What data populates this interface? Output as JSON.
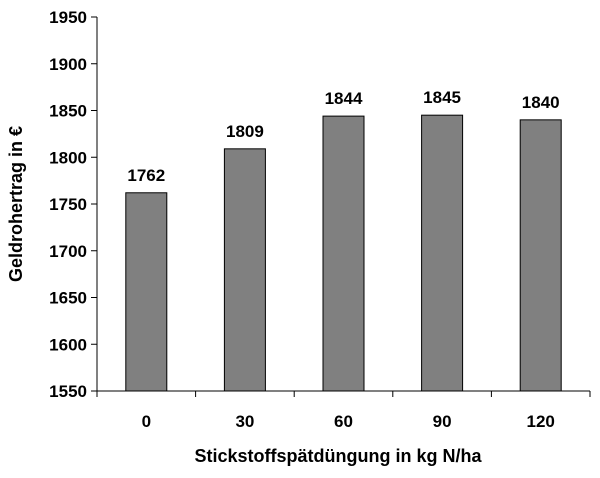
{
  "chart_data": {
    "type": "bar",
    "title": "",
    "xlabel": "Stickstoffspätdüngung in kg N/ha",
    "ylabel": "Geldrohertrag in €",
    "categories": [
      "0",
      "30",
      "60",
      "90",
      "120"
    ],
    "values": [
      1762,
      1809,
      1844,
      1845,
      1840
    ],
    "data_labels": [
      "1762",
      "1809",
      "1844",
      "1845",
      "1840"
    ],
    "ylim": [
      1550,
      1950
    ],
    "yticks": [
      1550,
      1600,
      1650,
      1700,
      1750,
      1800,
      1850,
      1900,
      1950
    ],
    "ytick_labels": [
      "1550",
      "1600",
      "1650",
      "1700",
      "1750",
      "1800",
      "1850",
      "1900",
      "1950"
    ],
    "grid": false,
    "legend": "none",
    "colors": {
      "bar_fill": "#808080",
      "bar_stroke": "#000000",
      "axis": "#000000",
      "text": "#000000"
    }
  }
}
